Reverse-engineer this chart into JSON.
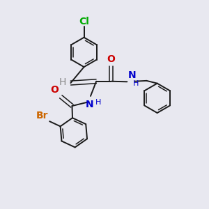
{
  "background_color": "#e8e8f0",
  "bond_color": "#1a1a1a",
  "atom_colors": {
    "Cl": "#00aa00",
    "Br": "#cc6600",
    "N": "#0000cc",
    "O": "#cc0000",
    "H": "#888888"
  },
  "lw": 1.4,
  "lw_inner": 1.1,
  "r_ring": 0.72,
  "font_size": 10,
  "font_size_sub": 8
}
